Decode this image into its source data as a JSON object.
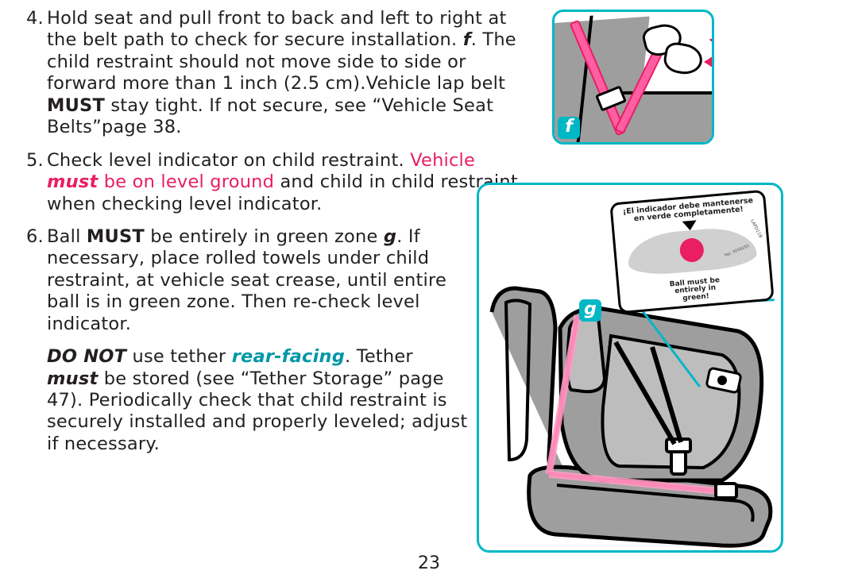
{
  "colors": {
    "text": "#231f20",
    "accent_teal": "#00b7c6",
    "accent_pink": "#e91e63",
    "belt_pink": "#ff5fa2",
    "grey": "#9e9e9e",
    "white": "#ffffff",
    "black": "#000000"
  },
  "page_number": "23",
  "labels": {
    "f": "f",
    "g": "g"
  },
  "sticker": {
    "top_line": "¡El indicador debe mantenerse\nen verde completamente!",
    "bottom_line": "Ball must be\nentirely in\ngreen!",
    "patent": "Pat. 5058283",
    "side": "LAPD11B"
  },
  "items": {
    "4": {
      "num": "4.",
      "p1": "Hold seat and pull front to back and left to right at the belt path to check for secure installation. ",
      "fref": "f",
      "p2": ". The child restraint should not move side to side or forward more than 1 inch (2.5 cm).Vehicle lap belt ",
      "must": "MUST",
      "p3": " stay tight. If not secure, see “Vehicle Seat Belts”page 38."
    },
    "5": {
      "num": "5.",
      "p1": "Check level indicator on child restraint. ",
      "red1": "Vehicle ",
      "red_must": "must",
      "red2": " be on level ground",
      "p2": " and child in child restraint when checking level indicator."
    },
    "6": {
      "num": "6.",
      "p1": "Ball ",
      "must": "MUST",
      "p2": " be entirely in green zone ",
      "gref": "g",
      "p3": ". If necessary, place rolled towels under child restraint, at vehicle seat crease, until entire ball is in green zone. Then re-check level indicator."
    },
    "note": {
      "donot": "DO NOT",
      "p1": " use tether ",
      "rear": "rear-facing",
      "p2": ". Tether ",
      "must": "must",
      "p3": " be stored (see “Tether Storage” page 47). Periodically check that child restraint is securely installed and properly leveled; adjust if necessary."
    }
  }
}
